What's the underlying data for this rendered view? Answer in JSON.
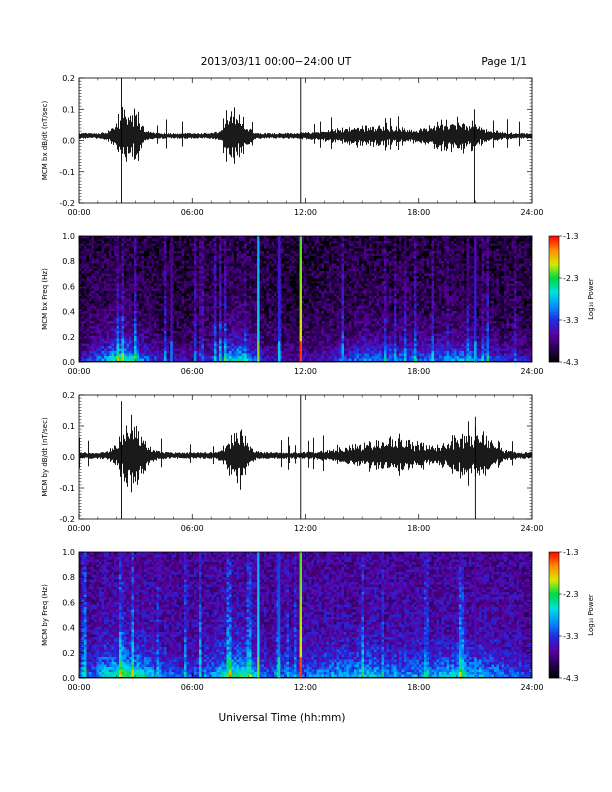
{
  "header": {
    "date_title": "2013/03/11  00:00−24:00 UT",
    "page_label": "Page 1/1"
  },
  "xaxis": {
    "title": "Universal Time (hh:mm)",
    "range_hours": [
      0,
      24
    ],
    "tick_hours": [
      0,
      6,
      12,
      18,
      24
    ],
    "tick_labels": [
      "00:00",
      "06:00",
      "12:00",
      "18:00",
      "24:00"
    ]
  },
  "colorbar": {
    "title": "Log₁₀ Power",
    "tick_values": [
      -1.3,
      -2.3,
      -3.3,
      -4.3
    ],
    "tick_labels": [
      "-1.3",
      "-2.3",
      "-3.3",
      "-4.3"
    ],
    "colors": [
      "#000000",
      "#2a0050",
      "#5a00a0",
      "#1f2ce0",
      "#0090ff",
      "#00e0e0",
      "#00d840",
      "#d8e800",
      "#ff9000",
      "#ff0000"
    ]
  },
  "chart_data": [
    {
      "type": "line",
      "ylabel": "MCM bx dB/dt (nT/sec)",
      "ylim": [
        -0.2,
        0.2
      ],
      "y_ticks": [
        -0.2,
        -0.1,
        0.0,
        0.1,
        0.2
      ],
      "y_tick_labels": [
        "-0.2",
        "-0.1",
        "0.0",
        "0.1",
        "0.2"
      ],
      "baseline": 0.015,
      "noise_level": 0.008,
      "activity_hours": [
        {
          "center": 2.6,
          "width": 0.7,
          "amplitude": 0.06
        },
        {
          "center": 8.3,
          "width": 0.6,
          "amplitude": 0.055
        },
        {
          "center": 15.5,
          "width": 2.2,
          "amplitude": 0.02
        },
        {
          "center": 20.0,
          "width": 1.5,
          "amplitude": 0.035
        }
      ],
      "spikes": [
        {
          "hour": 2.25,
          "min": -0.2,
          "max": 0.22
        },
        {
          "hour": 11.75,
          "min": -0.2,
          "max": 0.22
        },
        {
          "hour": 20.95,
          "min": -0.2,
          "max": 0.1
        }
      ]
    },
    {
      "type": "heatmap",
      "ylabel": "MCM bx Freq (Hz)",
      "ylim": [
        0.0,
        1.0
      ],
      "y_ticks": [
        0.0,
        0.2,
        0.4,
        0.6,
        0.8,
        1.0
      ],
      "y_tick_labels": [
        "0.0",
        "0.2",
        "0.4",
        "0.6",
        "0.8",
        "1.0"
      ],
      "zlim": [
        -4.3,
        -1.3
      ],
      "background_level": -4.05,
      "activity_hours": [
        {
          "center": 2.3,
          "width": 1.4,
          "level": 0.9
        },
        {
          "center": 8.3,
          "width": 1.0,
          "level": 0.85
        },
        {
          "center": 16.0,
          "width": 2.5,
          "level": 0.45
        },
        {
          "center": 20.5,
          "width": 1.8,
          "level": 0.55
        }
      ],
      "vertical_lines": [
        {
          "hour": 4.9,
          "level": -3.5
        },
        {
          "hour": 9.5,
          "level": -2.6
        },
        {
          "hour": 10.6,
          "level": -3.2
        },
        {
          "hour": 11.75,
          "level": -1.9
        },
        {
          "hour": 21.0,
          "level": -3.3
        }
      ]
    },
    {
      "type": "line",
      "ylabel": "MCM by dB/dt (nT/sec)",
      "ylim": [
        -0.2,
        0.2
      ],
      "y_ticks": [
        -0.2,
        -0.1,
        0.0,
        0.1,
        0.2
      ],
      "y_tick_labels": [
        "-0.2",
        "-0.1",
        "0.0",
        "0.1",
        "0.2"
      ],
      "baseline": 0.005,
      "noise_level": 0.009,
      "activity_hours": [
        {
          "center": 2.8,
          "width": 0.8,
          "amplitude": 0.07
        },
        {
          "center": 8.4,
          "width": 0.6,
          "amplitude": 0.06
        },
        {
          "center": 16.5,
          "width": 2.5,
          "amplitude": 0.03
        },
        {
          "center": 20.8,
          "width": 1.2,
          "amplitude": 0.055
        }
      ],
      "spikes": [
        {
          "hour": 2.25,
          "min": -0.2,
          "max": 0.18
        },
        {
          "hour": 11.75,
          "min": -0.2,
          "max": 0.22
        },
        {
          "hour": 21.0,
          "min": -0.2,
          "max": 0.13
        }
      ]
    },
    {
      "type": "heatmap",
      "ylabel": "MCM by Freq (Hz)",
      "ylim": [
        0.0,
        1.0
      ],
      "y_ticks": [
        0.0,
        0.2,
        0.4,
        0.6,
        0.8,
        1.0
      ],
      "y_tick_labels": [
        "0.0",
        "0.2",
        "0.4",
        "0.6",
        "0.8",
        "1.0"
      ],
      "zlim": [
        -4.3,
        -1.3
      ],
      "background_level": -3.7,
      "activity_hours": [
        {
          "center": 2.5,
          "width": 1.5,
          "level": 0.8
        },
        {
          "center": 8.3,
          "width": 1.2,
          "level": 0.7
        },
        {
          "center": 15.0,
          "width": 3.0,
          "level": 0.4
        },
        {
          "center": 20.5,
          "width": 1.8,
          "level": 0.5
        }
      ],
      "vertical_lines": [
        {
          "hour": 9.5,
          "level": -2.6
        },
        {
          "hour": 10.6,
          "level": -3.0
        },
        {
          "hour": 11.75,
          "level": -1.9
        },
        {
          "hour": 21.0,
          "level": -3.4
        }
      ]
    }
  ]
}
